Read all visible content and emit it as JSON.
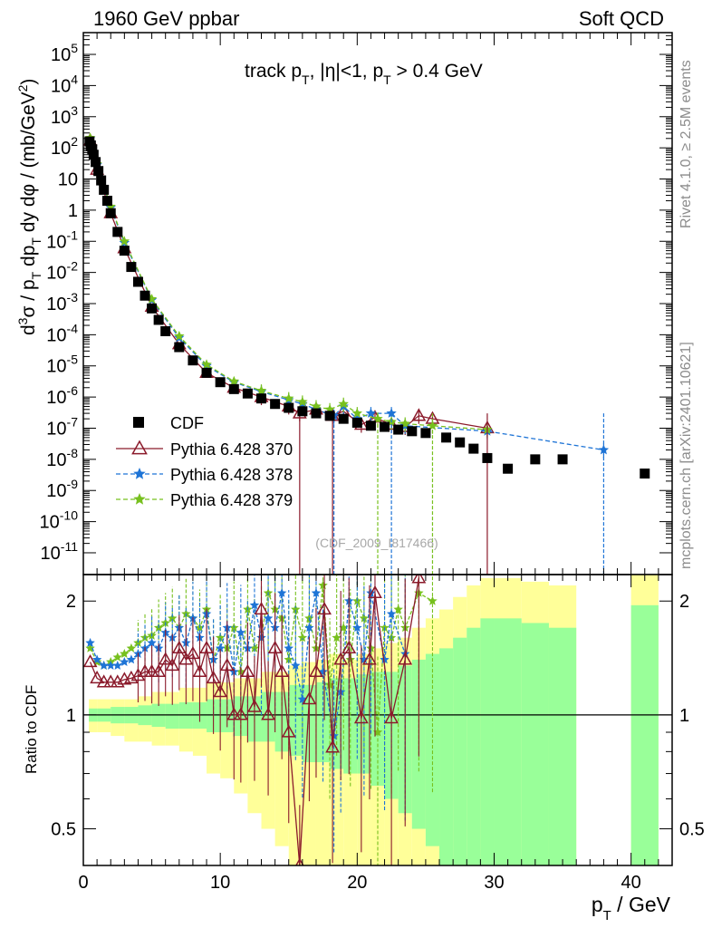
{
  "header": {
    "left": "1960 GeV ppbar",
    "right": "Soft QCD"
  },
  "side": {
    "rivet": "Rivet 4.1.0, ≥ 2.5M events",
    "mcplots": "mcplots.cern.ch [arXiv:2401.10621]"
  },
  "colors": {
    "cdf": "#000000",
    "p370": "#8b1a2b",
    "p378": "#1e74d6",
    "p379": "#77c01e",
    "band_green": "#99ff99",
    "band_yellow": "#ffff99"
  },
  "chart_data": [
    {
      "type": "scatter",
      "title": "track p_T, |η|<1, p_T > 0.4 GeV",
      "watermark": "(CDF_2009_I817466)",
      "ylabel": "d³σ / p_T dp_T dy dφ / (mb/GeV²)",
      "xlabel": "p_T / GeV",
      "xlim": [
        0,
        43
      ],
      "ylim": [
        2e-12,
        500000.0
      ],
      "yscale": "log",
      "y_tick_labels": [
        "10^-11",
        "10^-10",
        "10^-9",
        "10^-8",
        "10^-7",
        "10^-6",
        "10^-5",
        "10^-4",
        "10^-3",
        "10^-2",
        "10^-1",
        "1",
        "10",
        "10^2",
        "10^3",
        "10^4",
        "10^5"
      ],
      "x_tick_labels": [
        "0",
        "10",
        "20",
        "30",
        "40"
      ],
      "legend": [
        "CDF",
        "Pythia 6.428 370",
        "Pythia 6.428 378",
        "Pythia 6.428 379"
      ],
      "legend_position": "middle-left",
      "series": [
        {
          "name": "CDF",
          "x": [
            0.45,
            0.55,
            0.65,
            0.75,
            0.9,
            1.1,
            1.3,
            1.5,
            1.75,
            2.0,
            2.5,
            3.0,
            3.5,
            4.0,
            4.5,
            5.0,
            5.5,
            6.0,
            7.0,
            8.0,
            9.0,
            10.0,
            11.0,
            12.0,
            13.0,
            14.0,
            15.0,
            16.0,
            17.0,
            18.0,
            19.0,
            20.0,
            21.0,
            22.0,
            23.0,
            24.0,
            25.0,
            26.5,
            27.5,
            28.5,
            29.5,
            31.0,
            33.0,
            35.0,
            41.0
          ],
          "y": [
            160,
            120,
            90,
            60,
            35,
            18,
            9,
            4.5,
            2,
            0.8,
            0.2,
            0.05,
            0.015,
            0.005,
            0.0018,
            0.0007,
            0.0003,
            0.00013,
            4e-05,
            1.5e-05,
            6e-06,
            3e-06,
            1.8e-06,
            1.3e-06,
            9e-07,
            6e-07,
            4.5e-07,
            3.5e-07,
            3e-07,
            2.5e-07,
            2e-07,
            1.5e-07,
            1.2e-07,
            1.1e-07,
            9e-08,
            8e-08,
            7e-08,
            5e-08,
            3.5e-08,
            2.2e-08,
            1.1e-08,
            5e-09,
            1e-08,
            1e-08,
            3.5e-09
          ]
        },
        {
          "name": "Pythia 6.428 370",
          "x": [
            0.5,
            1,
            2,
            3,
            5,
            7,
            9,
            11,
            13,
            15,
            15.8,
            17,
            18.2,
            19,
            20.3,
            21.3,
            22.5,
            23.5,
            24.5,
            25.5,
            29.5
          ],
          "y": [
            170,
            20,
            0.8,
            0.06,
            0.0008,
            5e-05,
            6e-06,
            2e-06,
            1e-06,
            5e-07,
            3e-07,
            4e-07,
            2.5e-07,
            3.5e-07,
            1.3e-07,
            2.2e-07,
            1.3e-07,
            1.1e-07,
            2.5e-07,
            2e-07,
            1e-07
          ]
        },
        {
          "name": "Pythia 6.428 378",
          "x": [
            0.5,
            1,
            2,
            3,
            5,
            7,
            9,
            11,
            13,
            15,
            16,
            17,
            18.3,
            19,
            20,
            21,
            22.5,
            23.5,
            29.5,
            38
          ],
          "y": [
            200,
            28,
            1.2,
            0.09,
            0.0013,
            8e-05,
            1e-05,
            3e-06,
            1.5e-06,
            8e-07,
            6e-07,
            4e-07,
            2.5e-07,
            5e-07,
            2e-07,
            3e-07,
            3e-07,
            1.2e-07,
            8e-08,
            2e-08
          ]
        },
        {
          "name": "Pythia 6.428 379",
          "x": [
            0.5,
            1,
            2,
            3,
            5,
            7,
            9,
            11,
            13,
            15,
            16,
            17,
            18,
            19,
            20,
            21.5,
            22.5,
            23.5,
            25.5,
            29.5
          ],
          "y": [
            210,
            30,
            1.3,
            0.1,
            0.0014,
            9e-05,
            1.1e-05,
            3.2e-06,
            1.6e-06,
            9e-07,
            7e-07,
            5e-07,
            4e-07,
            6e-07,
            3e-07,
            2e-07,
            1.6e-07,
            1.4e-07,
            1.2e-07,
            9e-08
          ]
        }
      ]
    },
    {
      "type": "line",
      "ylabel": "Ratio to CDF",
      "xlabel": "p_T / GeV",
      "xlim": [
        0,
        43
      ],
      "ylim": [
        0.4,
        2.35
      ],
      "yscale": "log",
      "y_tick_labels": [
        "0.5",
        "1",
        "2"
      ],
      "x_tick_labels": [
        "0",
        "10",
        "20",
        "30",
        "40"
      ],
      "reference_line": 1,
      "bands": {
        "x_edges": [
          0.4,
          1,
          2,
          3,
          4,
          5,
          6,
          7,
          8,
          9,
          10,
          11,
          12,
          13,
          14,
          15,
          16,
          17,
          18,
          19,
          20,
          21,
          22,
          23,
          24,
          25,
          26,
          27,
          28,
          29,
          30,
          32,
          34,
          36,
          40,
          42
        ],
        "yellow_low": [
          0.9,
          0.9,
          0.88,
          0.85,
          0.85,
          0.83,
          0.83,
          0.8,
          0.78,
          0.7,
          0.68,
          0.62,
          0.55,
          0.5,
          0.45,
          0.4,
          0.4,
          0.4,
          0.4,
          0.4,
          0.4,
          0.4,
          0.4,
          0.4,
          0.4,
          0.4,
          0.4,
          0.4,
          0.4,
          0.4,
          0.4,
          0.4,
          0.4,
          0.4,
          0.4
        ],
        "yellow_high": [
          1.1,
          1.1,
          1.1,
          1.1,
          1.12,
          1.15,
          1.15,
          1.18,
          1.18,
          1.22,
          1.22,
          1.25,
          1.25,
          1.3,
          1.3,
          1.35,
          1.38,
          1.4,
          1.45,
          1.4,
          1.45,
          1.5,
          1.55,
          1.6,
          1.7,
          1.8,
          1.9,
          2.05,
          2.2,
          2.3,
          2.3,
          2.25,
          2.2,
          null,
          2.35
        ],
        "green_low": [
          0.96,
          0.96,
          0.95,
          0.95,
          0.94,
          0.93,
          0.92,
          0.92,
          0.92,
          0.9,
          0.9,
          0.88,
          0.85,
          0.85,
          0.8,
          0.78,
          0.75,
          0.75,
          0.72,
          0.7,
          0.7,
          0.65,
          0.6,
          0.55,
          0.5,
          0.45,
          0.4,
          0.4,
          0.4,
          0.4,
          0.4,
          0.4,
          0.4,
          null,
          0.4
        ],
        "green_high": [
          1.04,
          1.04,
          1.05,
          1.05,
          1.06,
          1.07,
          1.07,
          1.08,
          1.08,
          1.1,
          1.1,
          1.12,
          1.12,
          1.15,
          1.15,
          1.2,
          1.2,
          1.22,
          1.25,
          1.25,
          1.28,
          1.3,
          1.3,
          1.35,
          1.4,
          1.45,
          1.5,
          1.6,
          1.7,
          1.8,
          1.8,
          1.75,
          1.7,
          null,
          1.95
        ]
      },
      "series": [
        {
          "name": "Pythia 6.428 370",
          "x": [
            0.5,
            1,
            1.5,
            2,
            2.5,
            3,
            3.5,
            4,
            4.5,
            5,
            5.5,
            6,
            6.5,
            7,
            7.5,
            8,
            8.5,
            9,
            9.5,
            10,
            10.5,
            11,
            11.5,
            12,
            12.5,
            13,
            13.5,
            14,
            14.5,
            15,
            15.8,
            16.5,
            17,
            17.6,
            18.2,
            18.8,
            19.4,
            20.3,
            20.9,
            21.3,
            22.5,
            23.5,
            24.5
          ],
          "y": [
            1.38,
            1.25,
            1.22,
            1.22,
            1.22,
            1.24,
            1.25,
            1.27,
            1.3,
            1.3,
            1.3,
            1.4,
            1.35,
            1.5,
            1.4,
            1.45,
            1.3,
            1.5,
            1.25,
            1.15,
            1.35,
            1.0,
            1.0,
            1.3,
            1.05,
            1.9,
            1.0,
            1.5,
            1.3,
            0.9,
            0.4,
            1.1,
            1.3,
            1.9,
            0.82,
            1.4,
            1.5,
            0.98,
            1.4,
            2.1,
            0.98,
            1.4,
            2.3
          ]
        },
        {
          "name": "Pythia 6.428 378",
          "x": [
            0.5,
            1,
            1.5,
            2,
            2.5,
            3,
            3.5,
            4,
            4.5,
            5,
            5.5,
            6,
            6.5,
            7,
            7.5,
            8,
            8.5,
            9,
            9.5,
            10,
            10.5,
            11,
            11.5,
            12,
            12.5,
            13,
            13.5,
            14,
            14.5,
            15,
            15.5,
            16,
            16.5,
            17,
            17.5,
            18.3,
            18.8,
            19.4,
            20,
            20.5,
            21,
            22,
            22.5,
            23.5
          ],
          "y": [
            1.55,
            1.4,
            1.35,
            1.35,
            1.35,
            1.38,
            1.4,
            1.45,
            1.5,
            1.55,
            1.5,
            1.65,
            1.6,
            1.7,
            1.55,
            1.8,
            1.6,
            1.85,
            1.4,
            1.5,
            1.7,
            1.3,
            1.65,
            1.5,
            1.95,
            1.6,
            1.8,
            1.7,
            2.1,
            1.5,
            1.35,
            1.1,
            1.7,
            2.1,
            1.3,
            0.88,
            1.15,
            2.0,
            1.7,
            1.4,
            2.1,
            1.4,
            1.85,
            1.45
          ]
        },
        {
          "name": "Pythia 6.428 379",
          "x": [
            0.5,
            1,
            1.5,
            2,
            2.5,
            3,
            3.5,
            4,
            4.5,
            5,
            5.5,
            6,
            6.5,
            7,
            7.5,
            8,
            8.5,
            9,
            9.5,
            10,
            10.5,
            11,
            11.5,
            12,
            12.5,
            13,
            13.5,
            14,
            14.5,
            15,
            15.5,
            16,
            16.5,
            17,
            17.5,
            18,
            18.5,
            19,
            19.5,
            20,
            20.5,
            21,
            21.5,
            22,
            22.5,
            23,
            23.5,
            24.5,
            25.5
          ],
          "y": [
            1.5,
            1.38,
            1.35,
            1.38,
            1.42,
            1.45,
            1.5,
            1.55,
            1.6,
            1.62,
            1.7,
            1.75,
            1.8,
            1.7,
            1.85,
            1.8,
            1.7,
            1.9,
            1.4,
            1.6,
            1.5,
            1.7,
            1.3,
            1.9,
            1.5,
            1.6,
            2.1,
            1.9,
            1.8,
            1.4,
            1.9,
            1.6,
            1.8,
            1.5,
            2.2,
            1.2,
            1.6,
            1.7,
            1.4,
            2.0,
            1.8,
            1.5,
            0.9,
            1.7,
            1.6,
            1.9,
            1.7,
            2.1,
            2.0
          ]
        }
      ]
    }
  ]
}
